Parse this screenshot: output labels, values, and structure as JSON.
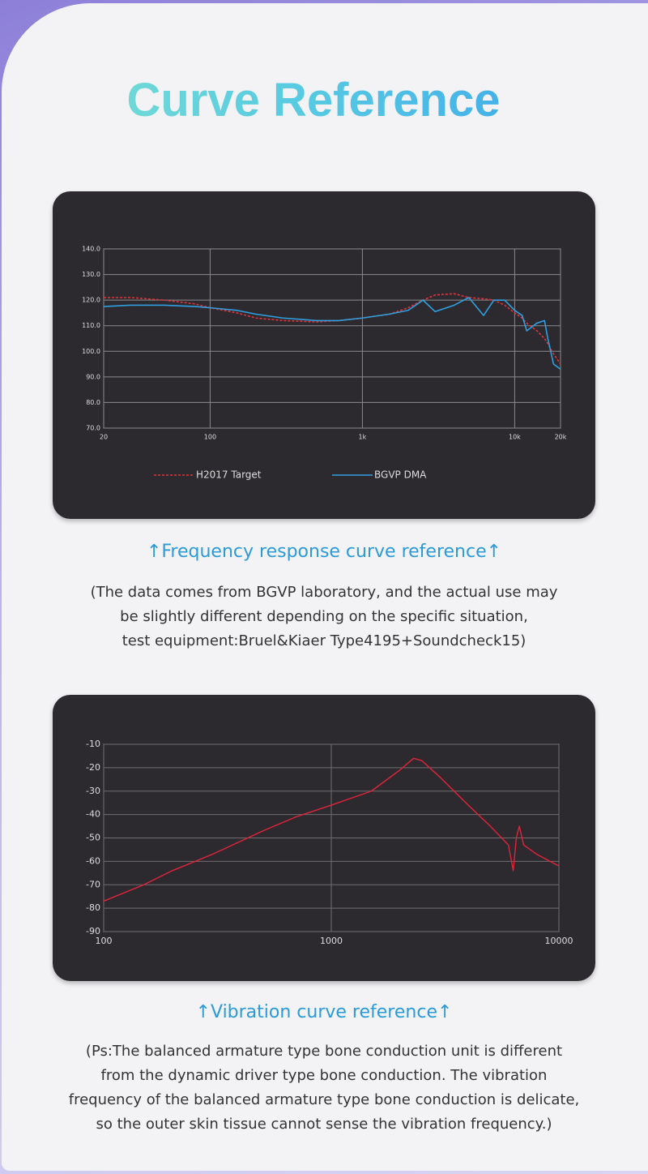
{
  "title": "Curve Reference",
  "chart_data": [
    {
      "type": "line",
      "log_x": true,
      "grid": true,
      "legend": "bottom",
      "x": [
        20,
        30,
        50,
        80,
        100,
        150,
        200,
        300,
        500,
        700,
        1000,
        1500,
        2000,
        2500,
        3000,
        4000,
        5000,
        6250,
        7300,
        8600,
        10000,
        11200,
        12000,
        14000,
        15700,
        16500,
        18000,
        20000
      ],
      "xlim": [
        20,
        20000
      ],
      "xticks": [
        20,
        100,
        {
          "value": 1000,
          "label": "1k"
        },
        {
          "value": 10000,
          "label": "10k"
        },
        {
          "value": 20000,
          "label": "20k"
        }
      ],
      "ylim": [
        70,
        140
      ],
      "yticks": [
        {
          "value": 70,
          "label": "70.0"
        },
        {
          "value": 80,
          "label": "80.0"
        },
        {
          "value": 90,
          "label": "90.0"
        },
        {
          "value": 100,
          "label": "100.0"
        },
        {
          "value": 110,
          "label": "110.0"
        },
        {
          "value": 120,
          "label": "120.0"
        },
        {
          "value": 130,
          "label": "130.0"
        },
        {
          "value": 140,
          "label": "140.0"
        }
      ],
      "series": [
        {
          "name": "H2017 Target",
          "color": "#e0343a",
          "dash": "dashed",
          "values": [
            121,
            121,
            120,
            118.5,
            117,
            115,
            113,
            112,
            111.5,
            112,
            113,
            114.5,
            117,
            120,
            122,
            122.5,
            121,
            120.5,
            120,
            118,
            115,
            113,
            111,
            108,
            105,
            103,
            99,
            95
          ]
        },
        {
          "name": "BGVP DMA",
          "color": "#2f9fe0",
          "dash": "solid",
          "values": [
            117.5,
            118,
            118,
            117.5,
            117,
            116,
            114.5,
            113,
            112,
            112,
            113,
            114.5,
            116,
            120,
            115.5,
            118,
            121,
            114,
            120,
            120,
            116,
            114,
            108,
            111,
            112,
            105,
            95,
            93
          ]
        }
      ]
    },
    {
      "type": "line",
      "log_x": true,
      "grid": true,
      "x": [
        100,
        150,
        200,
        300,
        500,
        700,
        1000,
        1500,
        2000,
        2300,
        2500,
        3000,
        4000,
        5000,
        6000,
        6300,
        6500,
        6700,
        7000,
        8000,
        10000
      ],
      "xlim": [
        100,
        10000
      ],
      "xticks": [
        100,
        1000,
        10000
      ],
      "ylim": [
        -90,
        -10
      ],
      "yticks": [
        -90,
        -80,
        -70,
        -60,
        -50,
        -40,
        -30,
        -20,
        -10
      ],
      "series": [
        {
          "color": "#e0243a",
          "dash": "solid",
          "values": [
            -77,
            -70,
            -64,
            -57,
            -47,
            -41,
            -36,
            -30,
            -21,
            -16,
            -17,
            -24,
            -36,
            -45,
            -53,
            -64,
            -50,
            -45,
            -53,
            -57,
            -62
          ]
        }
      ]
    }
  ],
  "captions": [
    "↑Frequency response curve reference↑",
    "↑Vibration curve reference↑"
  ],
  "notes": [
    [
      "(The data comes from BGVP laboratory, and the actual use may",
      "be slightly different depending on the specific situation,",
      "test equipment:Bruel&Kiaer Type4195+Soundcheck15)"
    ],
    [
      "(Ps:The balanced armature type bone conduction unit is different",
      "from the dynamic driver type bone conduction. The vibration",
      "frequency of the balanced armature type bone conduction is delicate,",
      "so the outer skin tissue cannot sense the vibration frequency.)"
    ]
  ]
}
